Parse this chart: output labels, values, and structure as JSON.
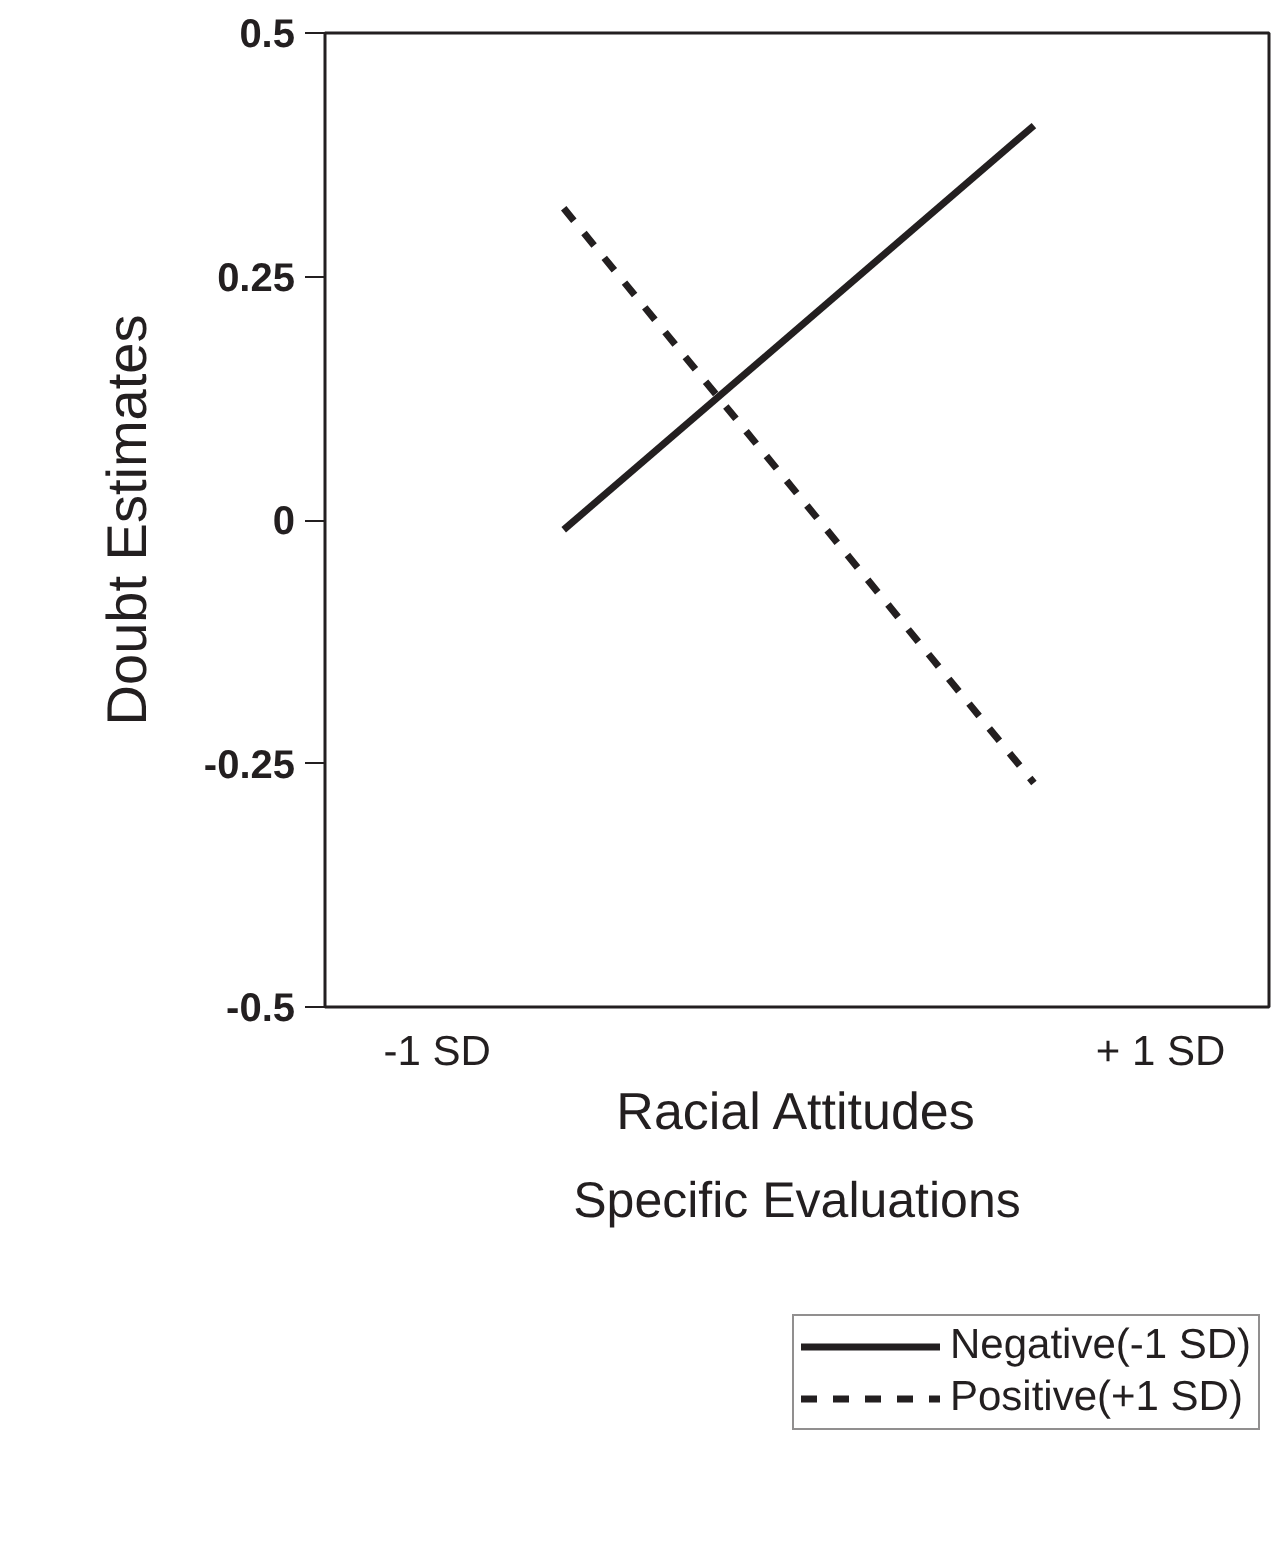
{
  "chart_data": {
    "type": "line",
    "title": "Specific Evaluations",
    "xlabel": "Racial Attitudes",
    "ylabel": "Doubt Estimates",
    "x": [
      -0.65,
      0.65
    ],
    "series": [
      {
        "name": "Negative(-1 SD)",
        "color": "#231f20",
        "values": [
          -0.01,
          0.405
        ],
        "line_style": "solid"
      },
      {
        "name": "Positive(+1 SD)",
        "color": "#231f20",
        "values": [
          0.32,
          -0.27
        ],
        "line_style": "dashed"
      }
    ],
    "xlim": [
      -1.31,
      1.3
    ],
    "xticks": [
      {
        "value": -1,
        "label": "-1 SD"
      },
      {
        "value": 1,
        "label": "+ 1 SD"
      }
    ],
    "ylim": [
      -0.5,
      0.5
    ],
    "yticks": [
      -0.5,
      -0.25,
      0,
      0.25,
      0.5
    ],
    "grid": false,
    "legend": "bottom",
    "marker": "none"
  }
}
